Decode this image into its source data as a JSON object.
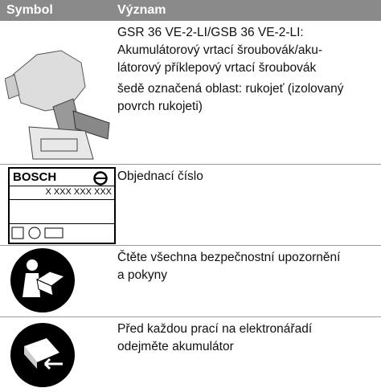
{
  "header": {
    "columns": [
      "Symbol",
      "Význam"
    ]
  },
  "rows": [
    {
      "paragraphs": [
        [
          "GSR 36 VE-2-LI/GSB 36 VE-2-LI:",
          "Akumulátorový vrtací šroubovák/aku-",
          "látorový příklepový vrtací šroubovák"
        ],
        [
          "šedě označená oblast: rukojeť (izolovaný",
          "povrch rukojeti)"
        ]
      ]
    },
    {
      "label": {
        "brand": "BOSCH",
        "number": "X XXX XXX XXX"
      },
      "paragraphs": [
        [
          "Objednací číslo"
        ]
      ]
    },
    {
      "paragraphs": [
        [
          "Čtěte všechna bezpečnostní upozornění",
          "a pokyny"
        ]
      ]
    },
    {
      "paragraphs": [
        [
          "Před každou prací na elektronářadí",
          "odejměte akumulátor"
        ]
      ]
    }
  ]
}
